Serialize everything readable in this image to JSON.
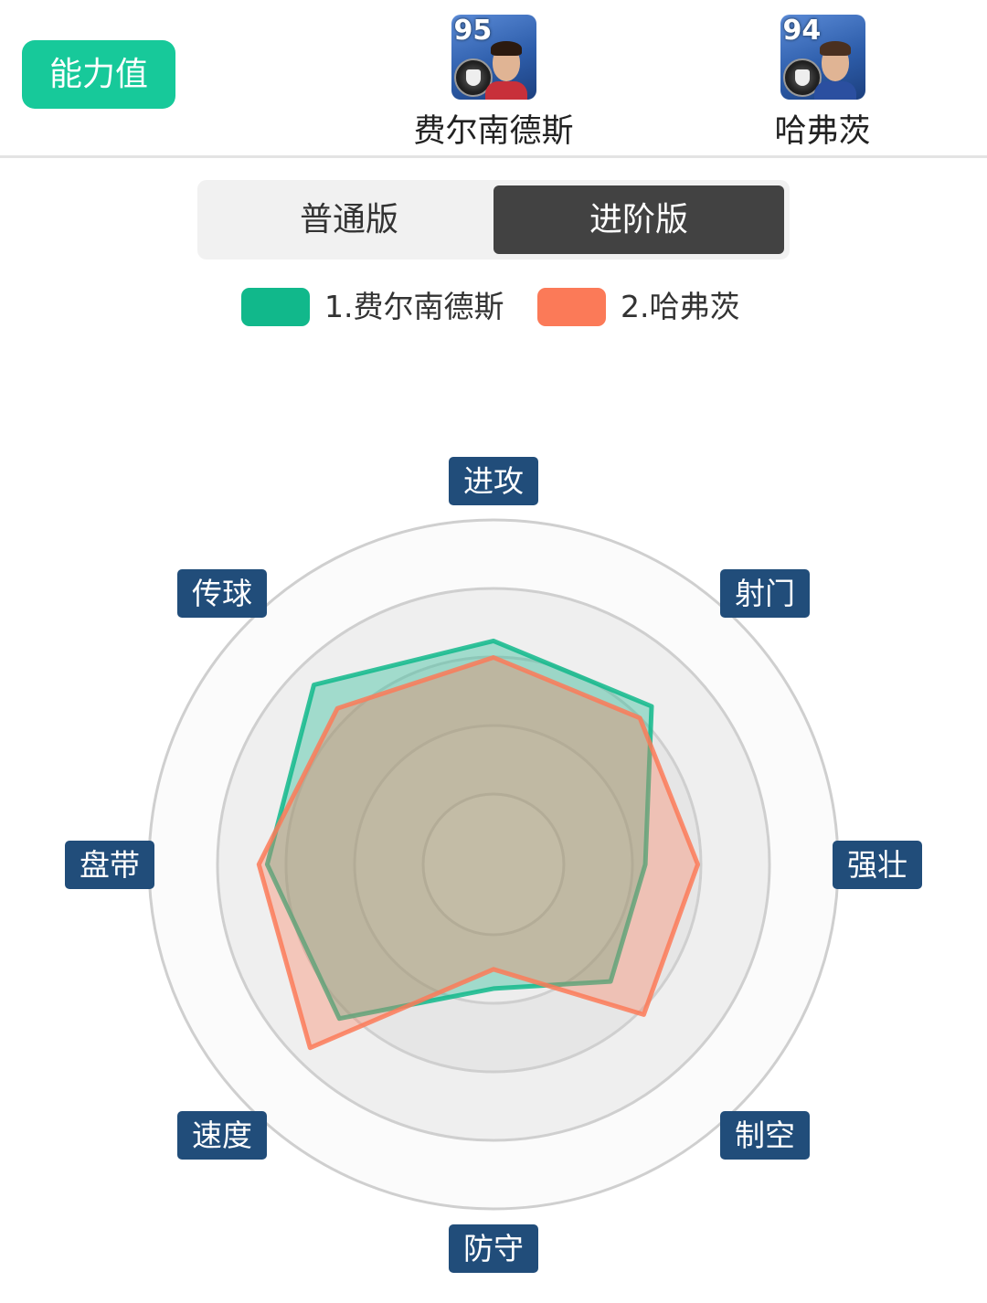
{
  "header": {
    "ability_button": "能力值",
    "players": [
      {
        "rating": "95",
        "name": "费尔南德斯",
        "shirt_color": "#c8303a",
        "hair_color": "#2b1a10"
      },
      {
        "rating": "94",
        "name": "哈弗茨",
        "shirt_color": "#2b4fa0",
        "hair_color": "#4a3020"
      }
    ]
  },
  "toggle": {
    "normal": "普通版",
    "advanced": "进阶版",
    "active": "advanced"
  },
  "legend": [
    {
      "label": "1.费尔南德斯",
      "color": "#11b88b"
    },
    {
      "label": "2.哈弗茨",
      "color": "#fb7a58"
    }
  ],
  "chart_data": {
    "type": "radar",
    "axes": [
      "进攻",
      "射门",
      "强壮",
      "制空",
      "防守",
      "速度",
      "盘带",
      "传球"
    ],
    "scale": [
      0,
      100
    ],
    "series": [
      {
        "name": "1.费尔南德斯",
        "values": [
          81,
          81,
          55,
          60,
          45,
          79,
          82,
          92
        ],
        "color": "#11b88b"
      },
      {
        "name": "2.哈弗茨",
        "values": [
          75,
          75,
          74,
          77,
          38,
          94,
          85,
          80
        ],
        "color": "#fb7a58"
      }
    ]
  }
}
